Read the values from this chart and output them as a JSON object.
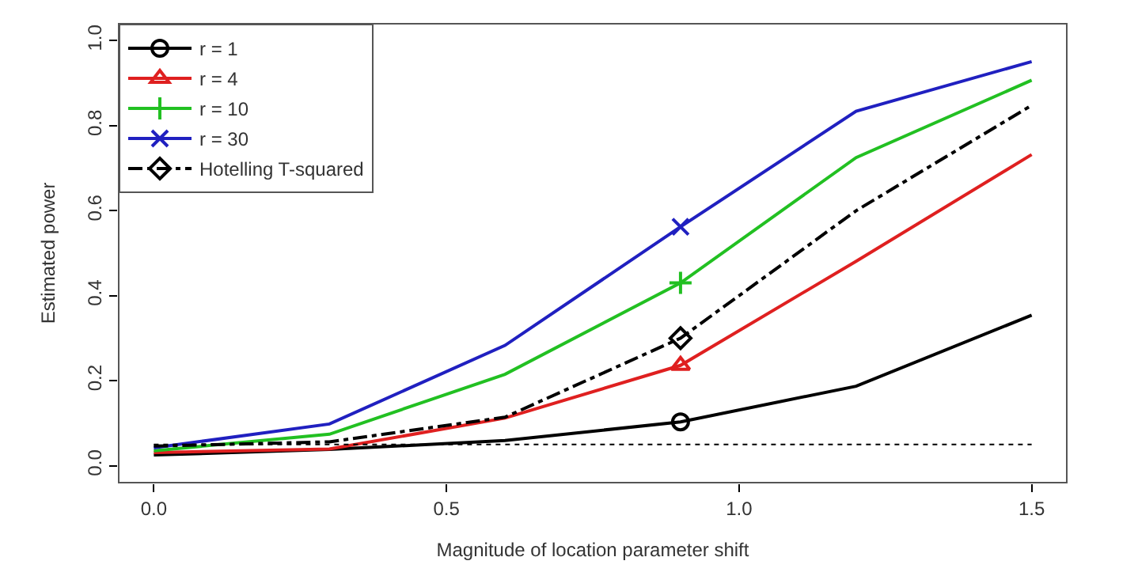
{
  "chart_data": {
    "type": "line",
    "xlabel": "Magnitude of location parameter shift",
    "ylabel": "Estimated power",
    "xlim": [
      -0.06,
      1.56
    ],
    "ylim": [
      -0.04,
      1.04
    ],
    "xticks": [
      {
        "value": 0,
        "label": "0.0"
      },
      {
        "value": 0.5,
        "label": "0.5"
      },
      {
        "value": 1,
        "label": "1.0"
      },
      {
        "value": 1.5,
        "label": "1.5"
      }
    ],
    "yticks": [
      {
        "value": 0,
        "label": "0.0"
      },
      {
        "value": 0.2,
        "label": "0.2"
      },
      {
        "value": 0.4,
        "label": "0.4"
      },
      {
        "value": 0.6,
        "label": "0.6"
      },
      {
        "value": 0.8,
        "label": "0.8"
      },
      {
        "value": 1,
        "label": "1.0"
      }
    ],
    "x": [
      0,
      0.3,
      0.6,
      0.9,
      1.2,
      1.5
    ],
    "legend": "top left",
    "marker": "none",
    "line_style": "solid",
    "series": [
      {
        "name": "r = 1",
        "color": "#000000",
        "values": [
          0.025,
          0.038,
          0.059,
          0.103,
          0.187,
          0.354
        ]
      },
      {
        "name": "r = 4",
        "color": "#df2020",
        "values": [
          0.031,
          0.039,
          0.112,
          0.236,
          0.481,
          0.732
        ]
      },
      {
        "name": "r = 10",
        "color": "#22c022",
        "values": [
          0.035,
          0.074,
          0.215,
          0.43,
          0.725,
          0.907
        ]
      },
      {
        "name": "r = 30",
        "color": "#2020c0",
        "values": [
          0.042,
          0.098,
          0.283,
          0.562,
          0.834,
          0.951
        ]
      },
      {
        "name": "Hotelling T-squared",
        "color": "#000000",
        "values": [
          0.046,
          0.056,
          0.114,
          0.3,
          0.6,
          0.848
        ],
        "line_style": "dashdot"
      },
      {
        "type": "scatter",
        "color": "#000000",
        "values": [
          null,
          null,
          null,
          0.103,
          null,
          null
        ],
        "marker": "circle"
      },
      {
        "type": "scatter",
        "color": "#df2020",
        "values": [
          null,
          null,
          null,
          0.236,
          null,
          null
        ],
        "marker": "triangle"
      },
      {
        "type": "scatter",
        "color": "#22c022",
        "values": [
          null,
          null,
          null,
          0.43,
          null,
          null
        ],
        "marker": "cross"
      },
      {
        "type": "scatter",
        "color": "#2020c0",
        "values": [
          null,
          null,
          null,
          0.562,
          null,
          null
        ],
        "marker": "x"
      },
      {
        "type": "scatter",
        "color": "#000000",
        "values": [
          null,
          null,
          null,
          0.3,
          null,
          null
        ],
        "marker": "diamond"
      }
    ],
    "ref_lines": [
      {
        "axis": "y",
        "value": 0.05,
        "color": "#000000",
        "line_style": "dotted"
      }
    ]
  }
}
